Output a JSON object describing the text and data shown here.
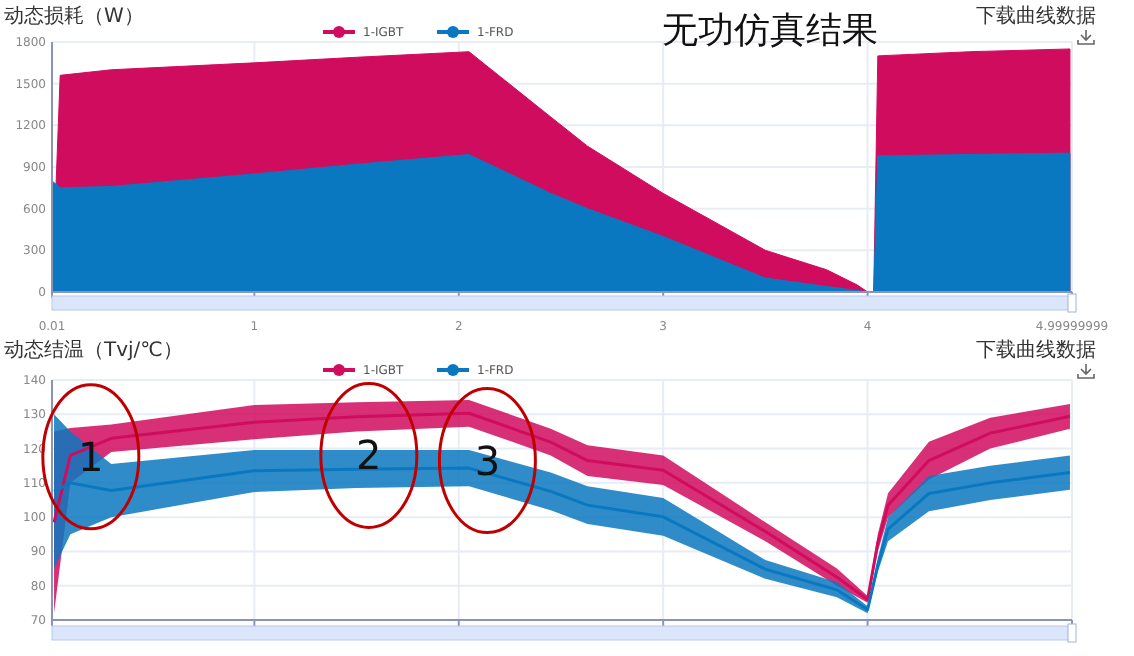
{
  "chart_data": [
    {
      "type": "area",
      "title": "动态损耗（W）",
      "x": [
        0.01,
        0.05,
        0.3,
        1,
        1.5,
        2.05,
        2.45,
        2.63,
        3,
        3.5,
        3.8,
        3.95,
        4.0,
        4.03,
        4.05,
        4.5,
        4.99
      ],
      "series": [
        {
          "name": "1-IGBT",
          "color": "#d00c5e",
          "values": [
            0,
            1560,
            1600,
            1650,
            1690,
            1730,
            1260,
            1050,
            710,
            300,
            160,
            50,
            0,
            0,
            1700,
            1730,
            1750
          ]
        },
        {
          "name": "1-FRD",
          "color": "#0a78c0",
          "values": [
            800,
            750,
            760,
            850,
            920,
            990,
            710,
            600,
            400,
            100,
            40,
            10,
            0,
            0,
            980,
            990,
            1000
          ]
        }
      ],
      "xlim": [
        0.01,
        4.99999999
      ],
      "xticks": [
        0.01,
        1,
        2,
        3,
        4,
        4.99999999
      ],
      "ylim": [
        0,
        1800
      ],
      "yticks": [
        0,
        300,
        600,
        900,
        1200,
        1500,
        1800
      ],
      "grid": true,
      "legend": "top",
      "annotations": [
        "下载曲线数据",
        "无功仿真结果"
      ]
    },
    {
      "type": "line",
      "title": "动态结温（Tvj/℃）",
      "x": [
        0.02,
        0.1,
        0.3,
        1,
        1.5,
        2.05,
        2.45,
        2.63,
        3,
        3.5,
        3.85,
        4.0,
        4.05,
        4.1,
        4.3,
        4.6,
        4.99
      ],
      "series": [
        {
          "name": "1-IGBT",
          "color": "#d00c5e",
          "values": [
            98.5,
            118,
            123,
            127.7,
            129.3,
            130.3,
            121.9,
            116.5,
            113.7,
            95.8,
            82.5,
            76,
            92.5,
            103.5,
            116.5,
            124.5,
            129.4
          ],
          "upper": [
            125,
            126,
            127,
            132.7,
            133.5,
            134.2,
            125.8,
            121,
            118,
            98.5,
            85,
            77,
            95,
            107,
            122,
            129,
            133
          ],
          "lower": [
            72,
            110,
            119,
            122.7,
            125,
            126.4,
            118,
            112,
            109.4,
            93,
            80,
            75,
            90,
            100,
            111,
            120,
            125.8
          ]
        },
        {
          "name": "1-FRD",
          "color": "#0a78c0",
          "values": [
            107.5,
            110,
            107.8,
            113.5,
            114,
            114.3,
            107.5,
            103.5,
            100.1,
            84.8,
            78.8,
            73,
            86,
            96.5,
            106.9,
            110,
            113
          ],
          "upper": [
            130,
            125,
            115.5,
            119.6,
            119.6,
            119.6,
            113,
            109,
            105.6,
            87.5,
            81,
            74,
            88,
            100,
            112,
            115,
            118
          ],
          "lower": [
            85,
            95,
            100,
            107.3,
            108.5,
            109,
            102,
            98,
            94.6,
            82,
            76.6,
            72,
            84,
            93,
            101.7,
            105,
            108
          ]
        }
      ],
      "xlim": [
        0.01,
        4.99999999
      ],
      "xticks": [
        0.01,
        1,
        2,
        3,
        4,
        4.99999999
      ],
      "ylim": [
        70,
        140
      ],
      "yticks": [
        70,
        80,
        90,
        100,
        110,
        120,
        130,
        140
      ],
      "grid": true,
      "legend": "top",
      "tick_labels": "y",
      "annotations": [
        "下载曲线数据",
        {
          "text": "1",
          "x": 0.2,
          "y": 117.6
        },
        {
          "text": "2",
          "x": 1.56,
          "y": 118
        },
        {
          "text": "3",
          "x": 2.14,
          "y": 116.5
        }
      ]
    }
  ]
}
